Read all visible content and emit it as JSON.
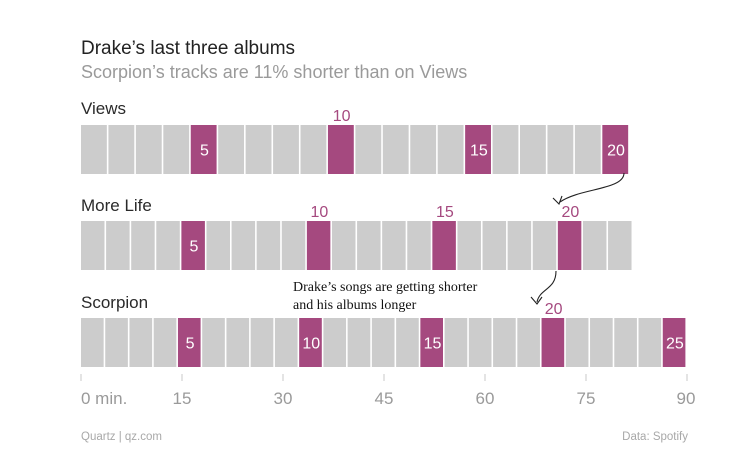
{
  "header": {
    "title": "Drake’s last three albums",
    "subtitle": "Scorpion’s tracks are 11% shorter than on Views"
  },
  "footer": {
    "source_left": "Quartz | qz.com",
    "source_right": "Data: Spotify"
  },
  "colors": {
    "track": "#cccccc",
    "highlight": "#a5497f",
    "track_gap": "#ffffff",
    "axis_text": "#9a9a9a"
  },
  "chart_data": {
    "type": "bar",
    "xlabel": "",
    "x_unit_label": "0 min.",
    "xlim": [
      0,
      90
    ],
    "xticks": [
      0,
      15,
      30,
      45,
      60,
      75,
      90
    ],
    "xtick_labels": [
      "0 min.",
      "15",
      "30",
      "45",
      "60",
      "75",
      "90"
    ],
    "albums": [
      {
        "name": "Views",
        "total_minutes": 81.5,
        "track_count": 20,
        "highlighted_tracks": [
          5,
          10,
          15,
          20
        ],
        "track_label_positions": {
          "5": "inside",
          "10": "above",
          "15": "inside",
          "20": "inside"
        }
      },
      {
        "name": "More Life",
        "total_minutes": 82,
        "track_count": 22,
        "highlighted_tracks": [
          5,
          10,
          15,
          20
        ],
        "track_label_positions": {
          "5": "inside",
          "10": "above",
          "15": "above",
          "20": "above"
        }
      },
      {
        "name": "Scorpion",
        "total_minutes": 90,
        "track_count": 25,
        "highlighted_tracks": [
          5,
          10,
          15,
          20,
          25
        ],
        "track_label_positions": {
          "5": "inside",
          "10": "inside",
          "15": "inside",
          "20": "above",
          "25": "inside"
        }
      }
    ],
    "annotation": {
      "text_line1": "Drake’s songs are getting shorter",
      "text_line2": "and his albums longer"
    }
  }
}
